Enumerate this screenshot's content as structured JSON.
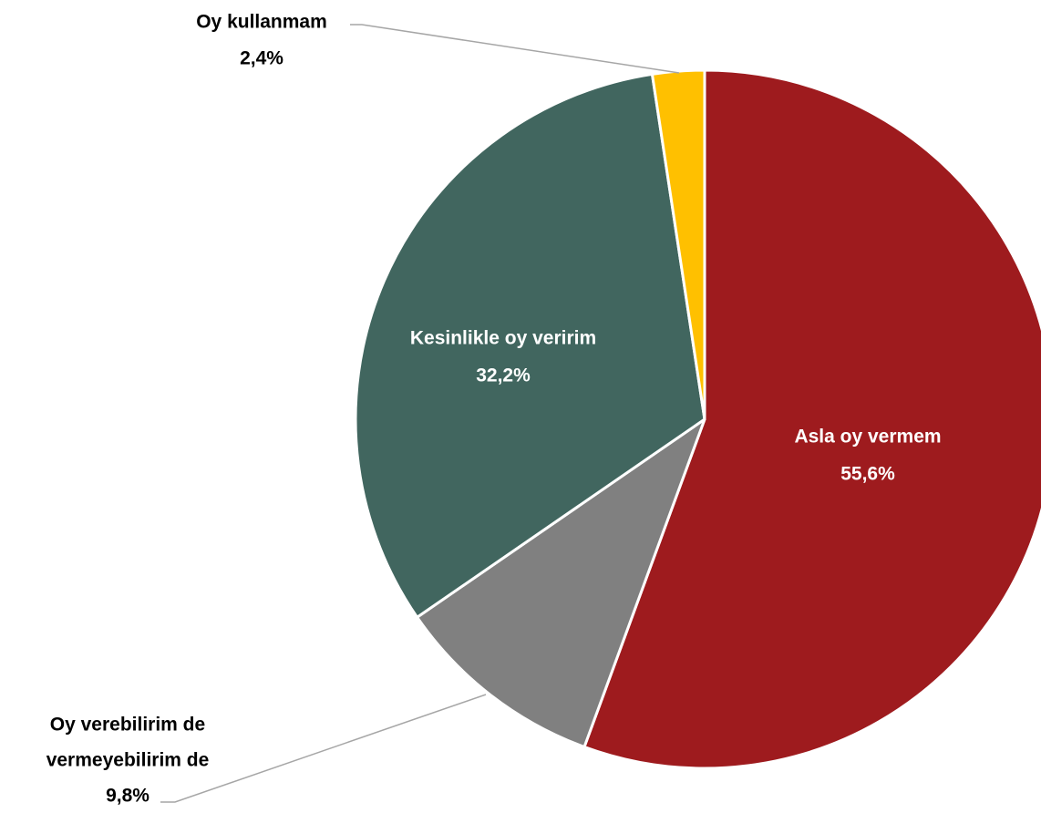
{
  "chart_data": {
    "type": "pie",
    "title": "",
    "slices": [
      {
        "label": "Asla oy vermem",
        "value": 55.6,
        "value_text": "55,6%",
        "color": "#9e1b1e",
        "label_color": "#ffffff"
      },
      {
        "label": "Oy verebilirim de vermeyebilirim de",
        "value": 9.8,
        "value_text": "9,8%",
        "color": "#808080",
        "label_color": "#000000"
      },
      {
        "label": "Kesinlikle oy veririm",
        "value": 32.2,
        "value_text": "32,2%",
        "color": "#41665f",
        "label_color": "#ffffff"
      },
      {
        "label": "Oy kullanmam",
        "value": 2.4,
        "value_text": "2,4%",
        "color": "#ffc000",
        "label_color": "#000000"
      }
    ],
    "legend": "none",
    "slice_border_color": "#ffffff",
    "leader_line_color": "#a6a6a6"
  }
}
